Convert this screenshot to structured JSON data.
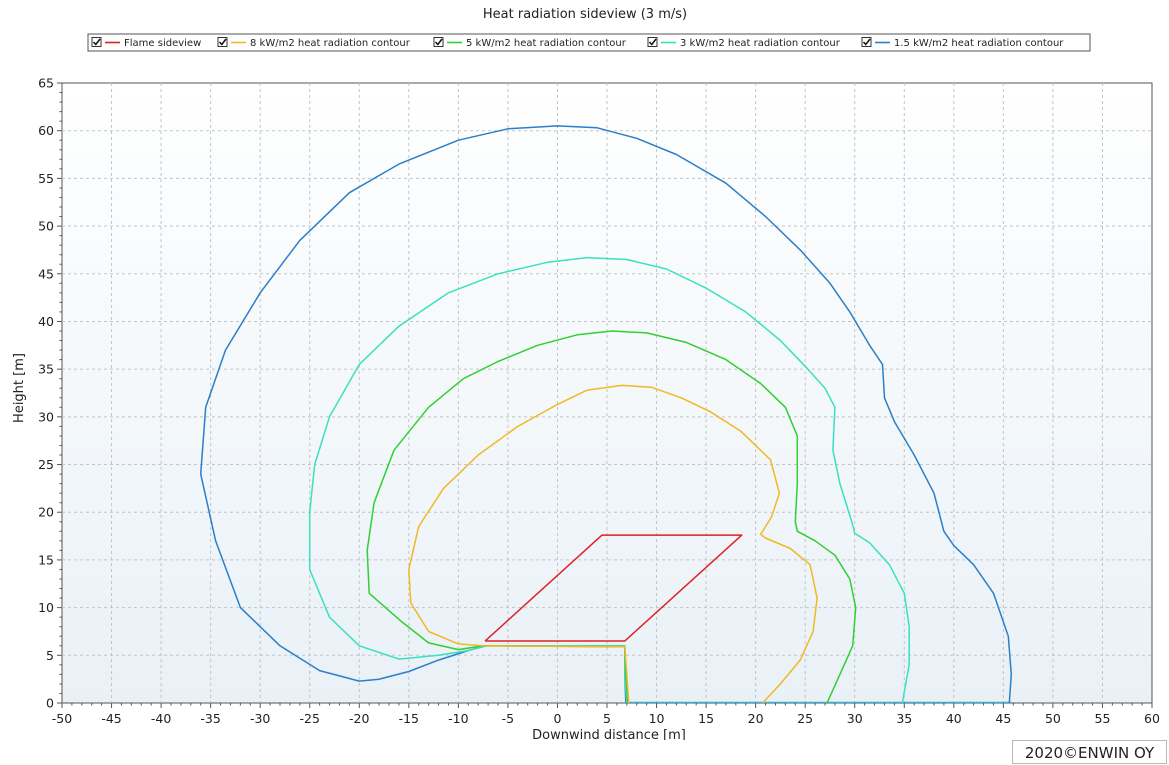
{
  "chart_data": {
    "type": "line",
    "title": "Heat radiation sideview (3 m/s)",
    "xlabel": "Downwind distance [m]",
    "ylabel": "Height [m]",
    "xlim": [
      -50,
      60
    ],
    "ylim": [
      0,
      65
    ],
    "xticks": [
      -50,
      -45,
      -40,
      -35,
      -30,
      -25,
      -20,
      -15,
      -10,
      -5,
      0,
      5,
      10,
      15,
      20,
      25,
      30,
      35,
      40,
      45,
      50,
      55,
      60
    ],
    "yticks": [
      0,
      5,
      10,
      15,
      20,
      25,
      30,
      35,
      40,
      45,
      50,
      55,
      60,
      65
    ],
    "grid": {
      "x": "dashed",
      "y": "dashed"
    },
    "legend_position": "top",
    "series": [
      {
        "name": "Flame sideview",
        "color": "#e02020",
        "checked": true,
        "points": [
          [
            -7.3,
            6.5
          ],
          [
            4.5,
            17.6
          ],
          [
            18.6,
            17.6
          ],
          [
            6.8,
            6.5
          ],
          [
            -7.3,
            6.5
          ]
        ]
      },
      {
        "name": "8 kW/m2 heat radiation contour",
        "color": "#f2b820",
        "checked": true,
        "points": [
          [
            7.2,
            0
          ],
          [
            7,
            3
          ],
          [
            6.8,
            5.9
          ],
          [
            -7.5,
            6
          ],
          [
            -10,
            6.2
          ],
          [
            -13,
            7.5
          ],
          [
            -14.8,
            10.5
          ],
          [
            -15,
            14
          ],
          [
            -14,
            18.5
          ],
          [
            -11.5,
            22.5
          ],
          [
            -8,
            26
          ],
          [
            -4,
            29
          ],
          [
            0,
            31.3
          ],
          [
            3,
            32.8
          ],
          [
            6.5,
            33.3
          ],
          [
            9.5,
            33.1
          ],
          [
            12.5,
            32
          ],
          [
            15.5,
            30.5
          ],
          [
            18.5,
            28.5
          ],
          [
            21.5,
            25.5
          ],
          [
            22.4,
            22
          ],
          [
            21.6,
            19.5
          ],
          [
            20.7,
            18
          ],
          [
            20.5,
            17.7
          ],
          [
            21,
            17.3
          ],
          [
            23.5,
            16.2
          ],
          [
            25.5,
            14.5
          ],
          [
            26.2,
            11
          ],
          [
            25.8,
            7.5
          ],
          [
            24.5,
            4.5
          ],
          [
            22.5,
            2
          ],
          [
            20.7,
            0
          ]
        ]
      },
      {
        "name": "5 kW/m2 heat radiation contour",
        "color": "#30d030",
        "checked": true,
        "points": [
          [
            7.1,
            0
          ],
          [
            6.9,
            3
          ],
          [
            6.8,
            5.9
          ],
          [
            -7.5,
            6
          ],
          [
            -10,
            5.6
          ],
          [
            -13,
            6.3
          ],
          [
            -15.7,
            8.5
          ],
          [
            -19,
            11.5
          ],
          [
            -19.2,
            16
          ],
          [
            -18.5,
            21
          ],
          [
            -16.5,
            26.5
          ],
          [
            -13,
            31
          ],
          [
            -9.5,
            34
          ],
          [
            -6,
            35.8
          ],
          [
            -2,
            37.5
          ],
          [
            2,
            38.6
          ],
          [
            5.5,
            39
          ],
          [
            9,
            38.8
          ],
          [
            13,
            37.8
          ],
          [
            17,
            36
          ],
          [
            20.5,
            33.5
          ],
          [
            23,
            31
          ],
          [
            24.2,
            28
          ],
          [
            24.2,
            23
          ],
          [
            24,
            19
          ],
          [
            24.2,
            18
          ],
          [
            26,
            17
          ],
          [
            28,
            15.5
          ],
          [
            29.5,
            13
          ],
          [
            30.1,
            10
          ],
          [
            29.8,
            6
          ],
          [
            28.5,
            3
          ],
          [
            27.2,
            0
          ]
        ]
      },
      {
        "name": "3 kW/m2 heat radiation contour",
        "color": "#3ae0c0",
        "checked": true,
        "points": [
          [
            7,
            0
          ],
          [
            6.8,
            3
          ],
          [
            6.8,
            6
          ],
          [
            -7.3,
            6
          ],
          [
            -9,
            5.5
          ],
          [
            -12,
            5
          ],
          [
            -16,
            4.6
          ],
          [
            -20,
            6
          ],
          [
            -23,
            9
          ],
          [
            -25,
            14
          ],
          [
            -25,
            20
          ],
          [
            -24.5,
            25
          ],
          [
            -23,
            30
          ],
          [
            -20,
            35.5
          ],
          [
            -16,
            39.5
          ],
          [
            -11,
            43
          ],
          [
            -6,
            45
          ],
          [
            -1,
            46.2
          ],
          [
            3,
            46.7
          ],
          [
            7,
            46.5
          ],
          [
            11,
            45.5
          ],
          [
            15,
            43.5
          ],
          [
            19,
            41
          ],
          [
            22.5,
            38
          ],
          [
            25,
            35.3
          ],
          [
            27,
            33
          ],
          [
            28,
            31
          ],
          [
            27.8,
            26.5
          ],
          [
            28.5,
            23
          ],
          [
            29.7,
            19
          ],
          [
            30,
            17.8
          ],
          [
            31.5,
            16.8
          ],
          [
            33.5,
            14.5
          ],
          [
            35,
            11.5
          ],
          [
            35.5,
            8
          ],
          [
            35.5,
            4
          ],
          [
            34.8,
            0
          ]
        ]
      },
      {
        "name": "1.5 kW/m2 heat radiation contour",
        "color": "#2a7fc8",
        "checked": true,
        "points": [
          [
            6.9,
            0
          ],
          [
            6.8,
            3
          ],
          [
            6.8,
            6
          ],
          [
            -7.2,
            6
          ],
          [
            -9,
            5.5
          ],
          [
            -12,
            4.5
          ],
          [
            -15,
            3.3
          ],
          [
            -18,
            2.5
          ],
          [
            -20,
            2.3
          ],
          [
            -24,
            3.4
          ],
          [
            -28,
            6
          ],
          [
            -32,
            10
          ],
          [
            -34.5,
            17
          ],
          [
            -36,
            24
          ],
          [
            -35.5,
            31
          ],
          [
            -33.5,
            37
          ],
          [
            -30,
            43
          ],
          [
            -26,
            48.5
          ],
          [
            -21,
            53.5
          ],
          [
            -16,
            56.5
          ],
          [
            -10,
            59
          ],
          [
            -5,
            60.2
          ],
          [
            0,
            60.5
          ],
          [
            4,
            60.3
          ],
          [
            8,
            59.2
          ],
          [
            12,
            57.5
          ],
          [
            17,
            54.5
          ],
          [
            21,
            51
          ],
          [
            24.5,
            47.5
          ],
          [
            27.5,
            44
          ],
          [
            29.5,
            41
          ],
          [
            31.5,
            37.5
          ],
          [
            32.8,
            35.5
          ],
          [
            33,
            32
          ],
          [
            34,
            29.5
          ],
          [
            36,
            26
          ],
          [
            38,
            22
          ],
          [
            39,
            18
          ],
          [
            40,
            16.5
          ],
          [
            42,
            14.5
          ],
          [
            44,
            11.5
          ],
          [
            45.5,
            7
          ],
          [
            45.8,
            3
          ],
          [
            45.6,
            0
          ]
        ]
      }
    ],
    "baseline": {
      "color": "#2ab0e0",
      "points": [
        [
          7,
          0
        ],
        [
          45.8,
          0
        ]
      ]
    }
  },
  "footer": {
    "copyright": "2020©ENWIN OY"
  }
}
